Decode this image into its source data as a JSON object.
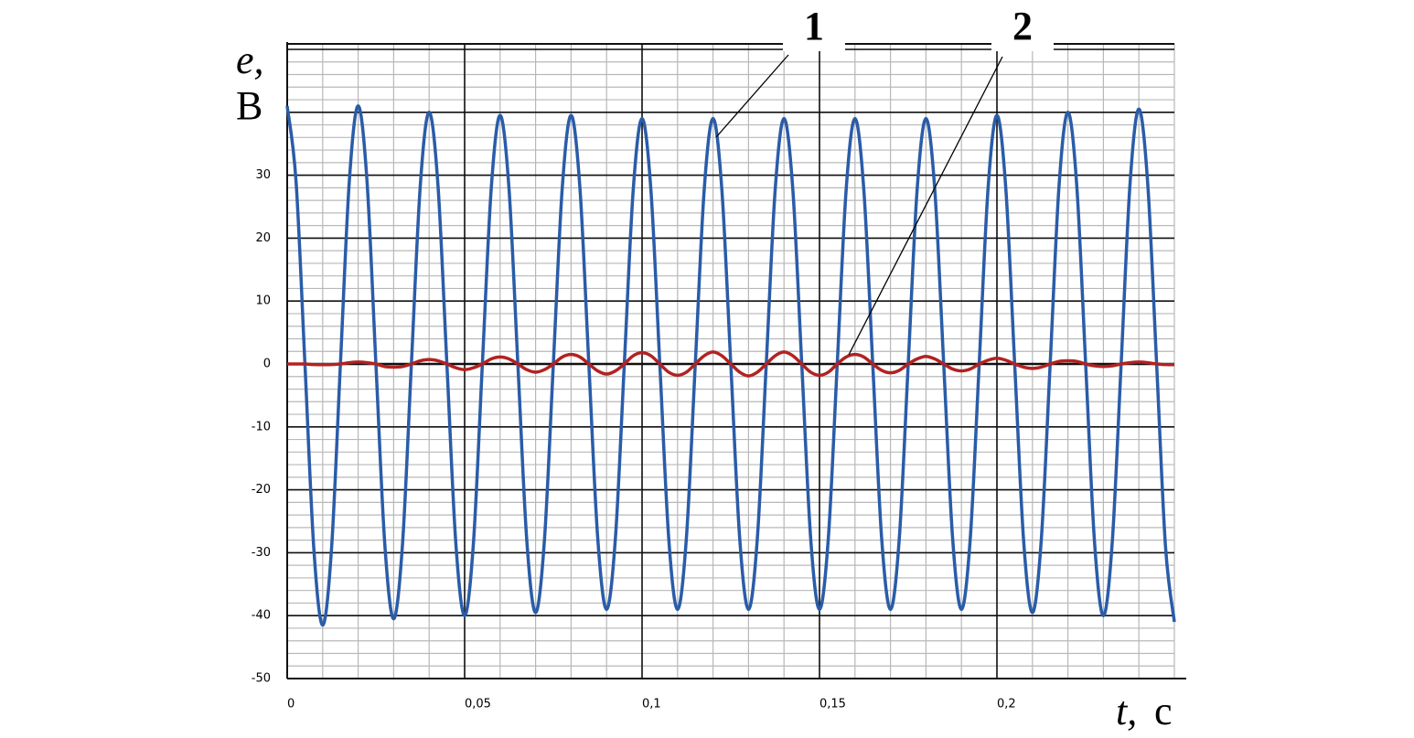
{
  "chart_data": {
    "type": "line",
    "ylabel": {
      "symbol": "e,",
      "unit": "B"
    },
    "xlabel": {
      "symbol": "t,",
      "unit": "c"
    },
    "xlim": [
      0,
      0.25
    ],
    "ylim": [
      -50,
      50
    ],
    "xticks": [
      0,
      {
        "value": 0.05,
        "label": "0,05"
      },
      {
        "value": 0.1,
        "label": "0,1"
      },
      {
        "value": 0.15,
        "label": "0,15"
      },
      {
        "value": 0.2,
        "label": "0,2"
      }
    ],
    "yticks": [
      -50,
      -40,
      -30,
      -20,
      -10,
      0,
      10,
      20,
      30
    ],
    "grid": true,
    "x": [
      0,
      0.0025,
      0.005,
      0.0075,
      0.01,
      0.0125,
      0.015,
      0.0175,
      0.02,
      0.0225,
      0.025,
      0.0275,
      0.03,
      0.0325,
      0.035,
      0.0375,
      0.04,
      0.0425,
      0.045,
      0.0475,
      0.05,
      0.0525,
      0.055,
      0.0575,
      0.06,
      0.0625,
      0.065,
      0.0675,
      0.07,
      0.0725,
      0.075,
      0.0775,
      0.08,
      0.0825,
      0.085,
      0.0875,
      0.09,
      0.0925,
      0.095,
      0.0975,
      0.1,
      0.1025,
      0.105,
      0.1075,
      0.11,
      0.1125,
      0.115,
      0.1175,
      0.12,
      0.1225,
      0.125,
      0.1275,
      0.13,
      0.1325,
      0.135,
      0.1375,
      0.14,
      0.1425,
      0.145,
      0.1475,
      0.15,
      0.1525,
      0.155,
      0.1575,
      0.16,
      0.1625,
      0.165,
      0.1675,
      0.17,
      0.1725,
      0.175,
      0.1775,
      0.18,
      0.1825,
      0.185,
      0.1875,
      0.19,
      0.1925,
      0.195,
      0.1975,
      0.2,
      0.2025,
      0.205,
      0.2075,
      0.21,
      0.2125,
      0.215,
      0.2175,
      0.22,
      0.2225,
      0.225,
      0.2275,
      0.23,
      0.2325,
      0.235,
      0.2375,
      0.24,
      0.2425,
      0.245,
      0.2475,
      0.25
    ],
    "series": [
      {
        "name": "1",
        "color": "#2a5ca8",
        "values": [
          41,
          29,
          0,
          -29.3,
          -41.5,
          -29.3,
          0,
          29,
          41,
          29,
          0,
          -28.6,
          -40.5,
          -28.6,
          0,
          28.3,
          40,
          28.3,
          0,
          -28.3,
          -40,
          -28.3,
          0,
          27.9,
          39.5,
          27.9,
          0,
          -27.9,
          -39.5,
          -27.9,
          0,
          27.9,
          39.5,
          27.9,
          0,
          -27.6,
          -39,
          -27.6,
          0,
          27.6,
          39,
          27.6,
          0,
          -27.6,
          -39,
          -27.6,
          0,
          27.6,
          39,
          27.6,
          0,
          -27.6,
          -39,
          -27.6,
          0,
          27.6,
          39,
          27.6,
          0,
          -27.6,
          -39,
          -27.6,
          0,
          27.6,
          39,
          27.6,
          0,
          -27.6,
          -39,
          -27.6,
          0,
          27.6,
          39,
          27.6,
          0,
          -27.6,
          -39,
          -27.6,
          0,
          27.9,
          39.5,
          27.9,
          0,
          -27.9,
          -39.5,
          -27.9,
          0,
          28.3,
          40,
          28.3,
          0,
          -28.3,
          -40,
          -28.3,
          0,
          28.6,
          40.5,
          28.6,
          0,
          -29,
          -41
        ]
      },
      {
        "name": "2",
        "color": "#b22222",
        "values": [
          0,
          0,
          0,
          -0.1,
          -0.1,
          -0.1,
          0,
          0.2,
          0.3,
          0.2,
          0,
          -0.4,
          -0.5,
          -0.4,
          0,
          0.5,
          0.7,
          0.5,
          0,
          -0.6,
          -0.9,
          -0.6,
          0,
          0.8,
          1.1,
          0.8,
          0,
          -0.9,
          -1.3,
          -0.9,
          0,
          1.1,
          1.5,
          1.1,
          0,
          -1.1,
          -1.6,
          -1.1,
          0,
          1.3,
          1.8,
          1.3,
          0,
          -1.3,
          -1.8,
          -1.3,
          0,
          1.3,
          1.9,
          1.3,
          0,
          -1.3,
          -1.9,
          -1.3,
          0,
          1.3,
          1.9,
          1.3,
          0,
          -1.3,
          -1.8,
          -1.3,
          0,
          1.1,
          1.5,
          1.1,
          0,
          -1,
          -1.4,
          -1,
          0,
          0.8,
          1.2,
          0.8,
          0,
          -0.8,
          -1.1,
          -0.8,
          0,
          0.6,
          0.9,
          0.6,
          0,
          -0.5,
          -0.7,
          -0.5,
          0,
          0.4,
          0.5,
          0.4,
          0,
          -0.3,
          -0.4,
          -0.3,
          0,
          0.2,
          0.3,
          0.2,
          0,
          -0.1,
          -0.1
        ]
      }
    ]
  }
}
